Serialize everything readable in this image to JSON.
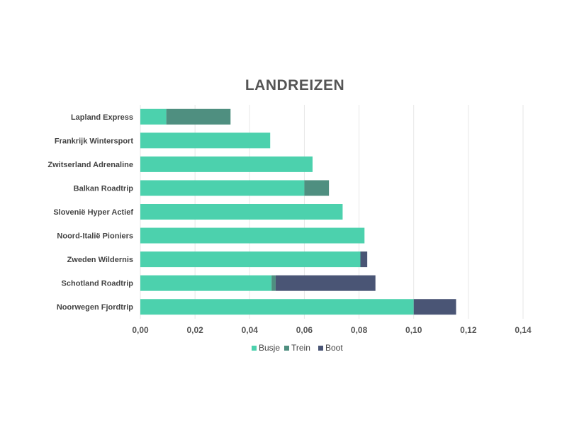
{
  "chart_data": {
    "type": "bar",
    "orientation": "horizontal",
    "stacked": true,
    "title": "LANDREIZEN",
    "categories": [
      "Lapland Express",
      "Frankrijk Wintersport",
      "Zwitserland Adrenaline",
      "Balkan Roadtrip",
      "Slovenië Hyper Actief",
      "Noord-Italië Pioniers",
      "Zweden Wildernis",
      "Schotland Roadtrip",
      "Noorwegen Fjordtrip"
    ],
    "series": [
      {
        "name": "Busje",
        "color": "#4cd1ad",
        "values": [
          0.0095,
          0.0475,
          0.063,
          0.06,
          0.074,
          0.082,
          0.0805,
          0.048,
          0.1
        ]
      },
      {
        "name": "Trein",
        "color": "#4f8f80",
        "values": [
          0.0235,
          0,
          0,
          0.009,
          0,
          0,
          0,
          0.0015,
          0
        ]
      },
      {
        "name": "Boot",
        "color": "#4a5575",
        "values": [
          0,
          0,
          0,
          0,
          0,
          0,
          0.0025,
          0.0365,
          0.0155
        ]
      }
    ],
    "xlim": [
      0,
      0.14
    ],
    "x_ticks": [
      "0,00",
      "0,02",
      "0,04",
      "0,06",
      "0,08",
      "0,10",
      "0,12",
      "0,14"
    ],
    "x_tick_values": [
      0,
      0.02,
      0.04,
      0.06,
      0.08,
      0.1,
      0.12,
      0.14
    ],
    "grid": true,
    "legend_position": "bottom"
  }
}
